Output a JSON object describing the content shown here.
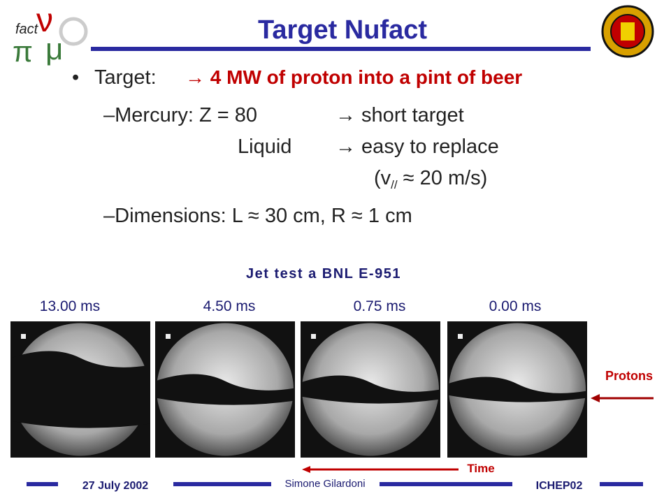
{
  "header": {
    "title": "Target Nufact",
    "logo": {
      "word": "fact",
      "nu": "ν",
      "pi": "π",
      "mu": "μ"
    }
  },
  "bullets": {
    "target": {
      "label": "Target:",
      "highlight": "→ 4 MW of proton into a pint of beer"
    },
    "mercury": {
      "label": "–Mercury:  Z = 80",
      "note": "→ short target"
    },
    "liquid": {
      "label": "Liquid",
      "note": "→ easy to replace"
    },
    "speed": {
      "open": "(v",
      "sub": "//",
      "rest": " ≈ 20 m/s)"
    },
    "dimensions": "–Dimensions:   L  ≈ 30 cm, R ≈ 1 cm"
  },
  "figure": {
    "caption": "Jet test a BNL E-951",
    "frames": [
      "13.00 ms",
      "4.50 ms",
      "0.75  ms",
      "0.00 ms"
    ],
    "protons": "Protons",
    "time": "Time"
  },
  "footer": {
    "date": "27 July 2002",
    "author": "Simone Gilardoni",
    "conference": "ICHEP02"
  }
}
